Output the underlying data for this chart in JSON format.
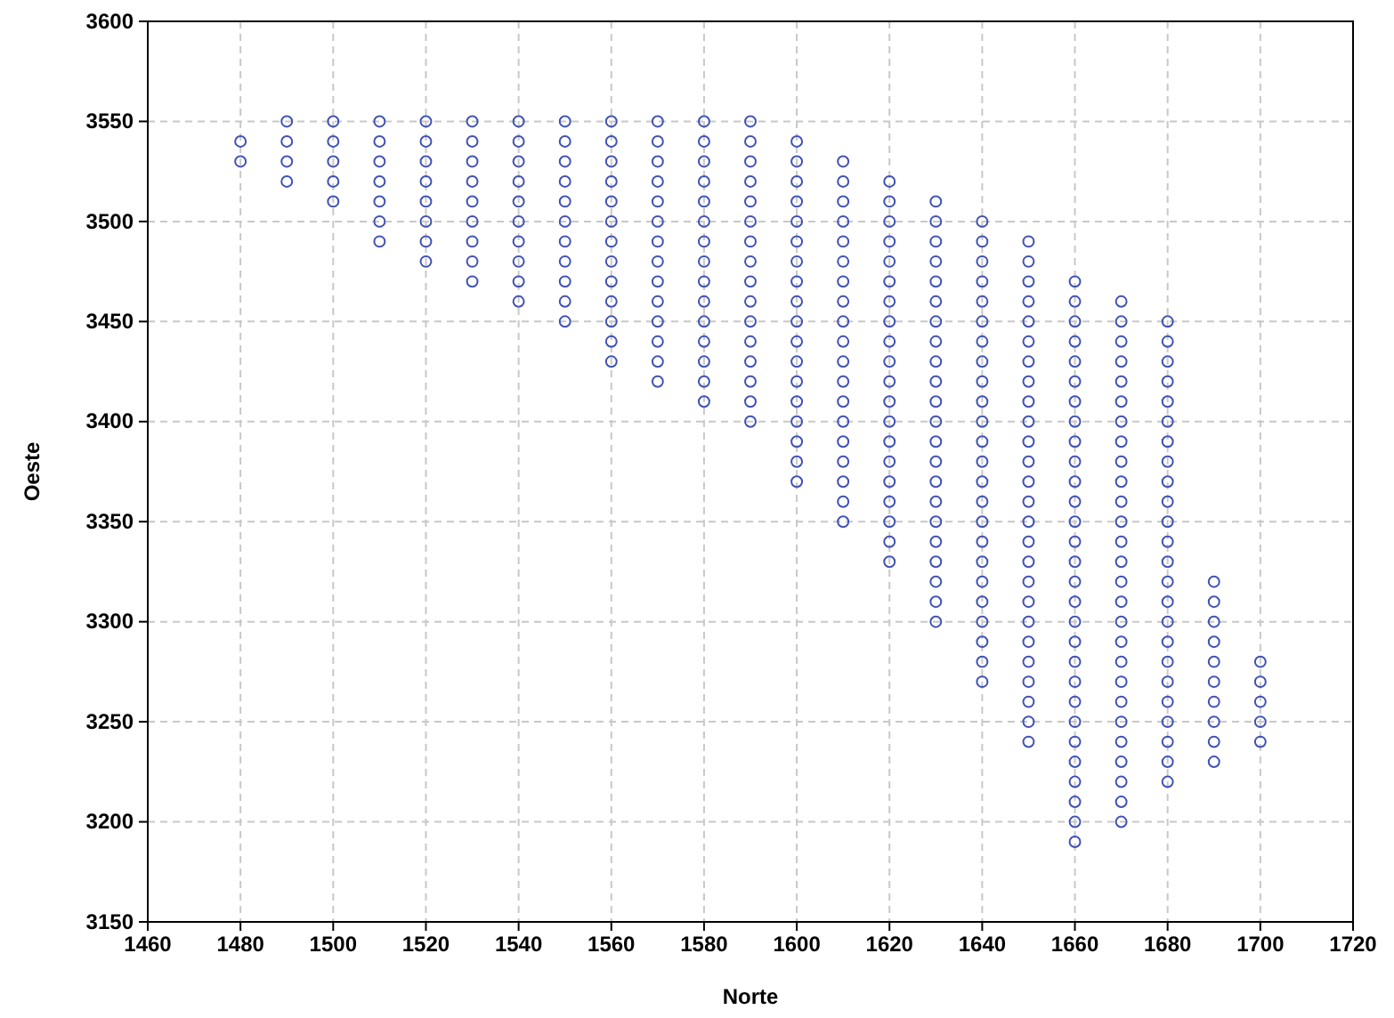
{
  "chart_data": {
    "type": "scatter",
    "xlabel": "Norte",
    "ylabel": "Oeste",
    "xlim": [
      1460,
      1720
    ],
    "xticks": [
      1460,
      1480,
      1500,
      1520,
      1540,
      1560,
      1580,
      1600,
      1620,
      1640,
      1660,
      1680,
      1700,
      1720
    ],
    "ylim": [
      3150,
      3600
    ],
    "yticks": [
      3150,
      3200,
      3250,
      3300,
      3350,
      3400,
      3450,
      3500,
      3550,
      3600
    ],
    "grid": true,
    "marker": "circle",
    "series": [
      {
        "color": "#3f51b5",
        "x": [
          1480,
          1480
        ],
        "values": [
          3540,
          3530
        ]
      },
      {
        "color": "#3f51b5",
        "x": [
          1490,
          1490,
          1490,
          1490
        ],
        "values": [
          3550,
          3540,
          3530,
          3520
        ]
      },
      {
        "color": "#3f51b5",
        "x": [
          1500,
          1500,
          1500,
          1500,
          1500
        ],
        "values": [
          3550,
          3540,
          3530,
          3520,
          3510
        ]
      },
      {
        "color": "#3f51b5",
        "x": [
          1510,
          1510,
          1510,
          1510,
          1510,
          1510,
          1510
        ],
        "values": [
          3550,
          3540,
          3530,
          3520,
          3510,
          3500,
          3490
        ]
      },
      {
        "color": "#3f51b5",
        "x": [
          1520,
          1520,
          1520,
          1520,
          1520,
          1520,
          1520,
          1520
        ],
        "values": [
          3550,
          3540,
          3530,
          3520,
          3510,
          3500,
          3490,
          3480
        ]
      },
      {
        "color": "#3f51b5",
        "x": [
          1530,
          1530,
          1530,
          1530,
          1530,
          1530,
          1530,
          1530,
          1530
        ],
        "values": [
          3550,
          3540,
          3530,
          3520,
          3510,
          3500,
          3490,
          3480,
          3470
        ]
      },
      {
        "color": "#3f51b5",
        "x": [
          1540,
          1540,
          1540,
          1540,
          1540,
          1540,
          1540,
          1540,
          1540,
          1540
        ],
        "values": [
          3550,
          3540,
          3530,
          3520,
          3510,
          3500,
          3490,
          3480,
          3470,
          3460
        ]
      },
      {
        "color": "#3f51b5",
        "x": [
          1550,
          1550,
          1550,
          1550,
          1550,
          1550,
          1550,
          1550,
          1550,
          1550,
          1550
        ],
        "values": [
          3550,
          3540,
          3530,
          3520,
          3510,
          3500,
          3490,
          3480,
          3470,
          3460,
          3450
        ]
      },
      {
        "color": "#3f51b5",
        "x": [
          1560,
          1560,
          1560,
          1560,
          1560,
          1560,
          1560,
          1560,
          1560,
          1560,
          1560,
          1560,
          1560
        ],
        "values": [
          3550,
          3540,
          3530,
          3520,
          3510,
          3500,
          3490,
          3480,
          3470,
          3460,
          3450,
          3440,
          3430
        ]
      },
      {
        "color": "#3f51b5",
        "x": [
          1570,
          1570,
          1570,
          1570,
          1570,
          1570,
          1570,
          1570,
          1570,
          1570,
          1570,
          1570,
          1570,
          1570
        ],
        "values": [
          3550,
          3540,
          3530,
          3520,
          3510,
          3500,
          3490,
          3480,
          3470,
          3460,
          3450,
          3440,
          3430,
          3420
        ]
      },
      {
        "color": "#3f51b5",
        "x": [
          1580,
          1580,
          1580,
          1580,
          1580,
          1580,
          1580,
          1580,
          1580,
          1580,
          1580,
          1580,
          1580,
          1580,
          1580
        ],
        "values": [
          3550,
          3540,
          3530,
          3520,
          3510,
          3500,
          3490,
          3480,
          3470,
          3460,
          3450,
          3440,
          3430,
          3420,
          3410
        ]
      },
      {
        "color": "#3f51b5",
        "x": [
          1590,
          1590,
          1590,
          1590,
          1590,
          1590,
          1590,
          1590,
          1590,
          1590,
          1590,
          1590,
          1590,
          1590,
          1590,
          1590
        ],
        "values": [
          3550,
          3540,
          3530,
          3520,
          3510,
          3500,
          3490,
          3480,
          3470,
          3460,
          3450,
          3440,
          3430,
          3420,
          3410,
          3400
        ]
      },
      {
        "color": "#3f51b5",
        "x": [
          1600,
          1600,
          1600,
          1600,
          1600,
          1600,
          1600,
          1600,
          1600,
          1600,
          1600,
          1600,
          1600,
          1600,
          1600,
          1600,
          1600,
          1600
        ],
        "values": [
          3540,
          3530,
          3520,
          3510,
          3500,
          3490,
          3480,
          3470,
          3460,
          3450,
          3440,
          3430,
          3420,
          3410,
          3400,
          3390,
          3380,
          3370
        ]
      },
      {
        "color": "#3f51b5",
        "x": [
          1610,
          1610,
          1610,
          1610,
          1610,
          1610,
          1610,
          1610,
          1610,
          1610,
          1610,
          1610,
          1610,
          1610,
          1610,
          1610,
          1610,
          1610,
          1610
        ],
        "values": [
          3530,
          3520,
          3510,
          3500,
          3490,
          3480,
          3470,
          3460,
          3450,
          3440,
          3430,
          3420,
          3410,
          3400,
          3390,
          3380,
          3370,
          3360,
          3350
        ]
      },
      {
        "color": "#3f51b5",
        "x": [
          1620,
          1620,
          1620,
          1620,
          1620,
          1620,
          1620,
          1620,
          1620,
          1620,
          1620,
          1620,
          1620,
          1620,
          1620,
          1620,
          1620,
          1620,
          1620,
          1620
        ],
        "values": [
          3520,
          3510,
          3500,
          3490,
          3480,
          3470,
          3460,
          3450,
          3440,
          3430,
          3420,
          3410,
          3400,
          3390,
          3380,
          3370,
          3360,
          3350,
          3340,
          3330
        ]
      },
      {
        "color": "#3f51b5",
        "x": [
          1630,
          1630,
          1630,
          1630,
          1630,
          1630,
          1630,
          1630,
          1630,
          1630,
          1630,
          1630,
          1630,
          1630,
          1630,
          1630,
          1630,
          1630,
          1630,
          1630,
          1630,
          1630
        ],
        "values": [
          3510,
          3500,
          3490,
          3480,
          3470,
          3460,
          3450,
          3440,
          3430,
          3420,
          3410,
          3400,
          3390,
          3380,
          3370,
          3360,
          3350,
          3340,
          3330,
          3320,
          3310,
          3300
        ]
      },
      {
        "color": "#3f51b5",
        "x": [
          1640,
          1640,
          1640,
          1640,
          1640,
          1640,
          1640,
          1640,
          1640,
          1640,
          1640,
          1640,
          1640,
          1640,
          1640,
          1640,
          1640,
          1640,
          1640,
          1640,
          1640,
          1640,
          1640,
          1640
        ],
        "values": [
          3500,
          3490,
          3480,
          3470,
          3460,
          3450,
          3440,
          3430,
          3420,
          3410,
          3400,
          3390,
          3380,
          3370,
          3360,
          3350,
          3340,
          3330,
          3320,
          3310,
          3300,
          3290,
          3280,
          3270
        ]
      },
      {
        "color": "#3f51b5",
        "x": [
          1650,
          1650,
          1650,
          1650,
          1650,
          1650,
          1650,
          1650,
          1650,
          1650,
          1650,
          1650,
          1650,
          1650,
          1650,
          1650,
          1650,
          1650,
          1650,
          1650,
          1650,
          1650,
          1650,
          1650,
          1650,
          1650
        ],
        "values": [
          3490,
          3480,
          3470,
          3460,
          3450,
          3440,
          3430,
          3420,
          3410,
          3400,
          3390,
          3380,
          3370,
          3360,
          3350,
          3340,
          3330,
          3320,
          3310,
          3300,
          3290,
          3280,
          3270,
          3260,
          3250,
          3240
        ]
      },
      {
        "color": "#3f51b5",
        "x": [
          1660,
          1660,
          1660,
          1660,
          1660,
          1660,
          1660,
          1660,
          1660,
          1660,
          1660,
          1660,
          1660,
          1660,
          1660,
          1660,
          1660,
          1660,
          1660,
          1660,
          1660,
          1660,
          1660,
          1660,
          1660,
          1660,
          1660,
          1660,
          1660
        ],
        "values": [
          3470,
          3460,
          3450,
          3440,
          3430,
          3420,
          3410,
          3400,
          3390,
          3380,
          3370,
          3360,
          3350,
          3340,
          3330,
          3320,
          3310,
          3300,
          3290,
          3280,
          3270,
          3260,
          3250,
          3240,
          3230,
          3220,
          3210,
          3200,
          3190
        ]
      },
      {
        "color": "#3f51b5",
        "x": [
          1670,
          1670,
          1670,
          1670,
          1670,
          1670,
          1670,
          1670,
          1670,
          1670,
          1670,
          1670,
          1670,
          1670,
          1670,
          1670,
          1670,
          1670,
          1670,
          1670,
          1670,
          1670,
          1670,
          1670,
          1670,
          1670,
          1670
        ],
        "values": [
          3460,
          3450,
          3440,
          3430,
          3420,
          3410,
          3400,
          3390,
          3380,
          3370,
          3360,
          3350,
          3340,
          3330,
          3320,
          3310,
          3300,
          3290,
          3280,
          3270,
          3260,
          3250,
          3240,
          3230,
          3220,
          3210,
          3200
        ]
      },
      {
        "color": "#3f51b5",
        "x": [
          1680,
          1680,
          1680,
          1680,
          1680,
          1680,
          1680,
          1680,
          1680,
          1680,
          1680,
          1680,
          1680,
          1680,
          1680,
          1680,
          1680,
          1680,
          1680,
          1680,
          1680,
          1680,
          1680,
          1680
        ],
        "values": [
          3450,
          3440,
          3430,
          3420,
          3410,
          3400,
          3390,
          3380,
          3370,
          3360,
          3350,
          3340,
          3330,
          3320,
          3310,
          3300,
          3290,
          3280,
          3270,
          3260,
          3250,
          3240,
          3230,
          3220
        ]
      },
      {
        "color": "#3f51b5",
        "x": [
          1690,
          1690,
          1690,
          1690,
          1690,
          1690,
          1690,
          1690,
          1690,
          1690
        ],
        "values": [
          3320,
          3310,
          3300,
          3290,
          3280,
          3270,
          3260,
          3250,
          3240,
          3230
        ]
      },
      {
        "color": "#3f51b5",
        "x": [
          1700,
          1700,
          1700,
          1700,
          1700
        ],
        "values": [
          3280,
          3270,
          3260,
          3250,
          3240
        ]
      }
    ]
  }
}
